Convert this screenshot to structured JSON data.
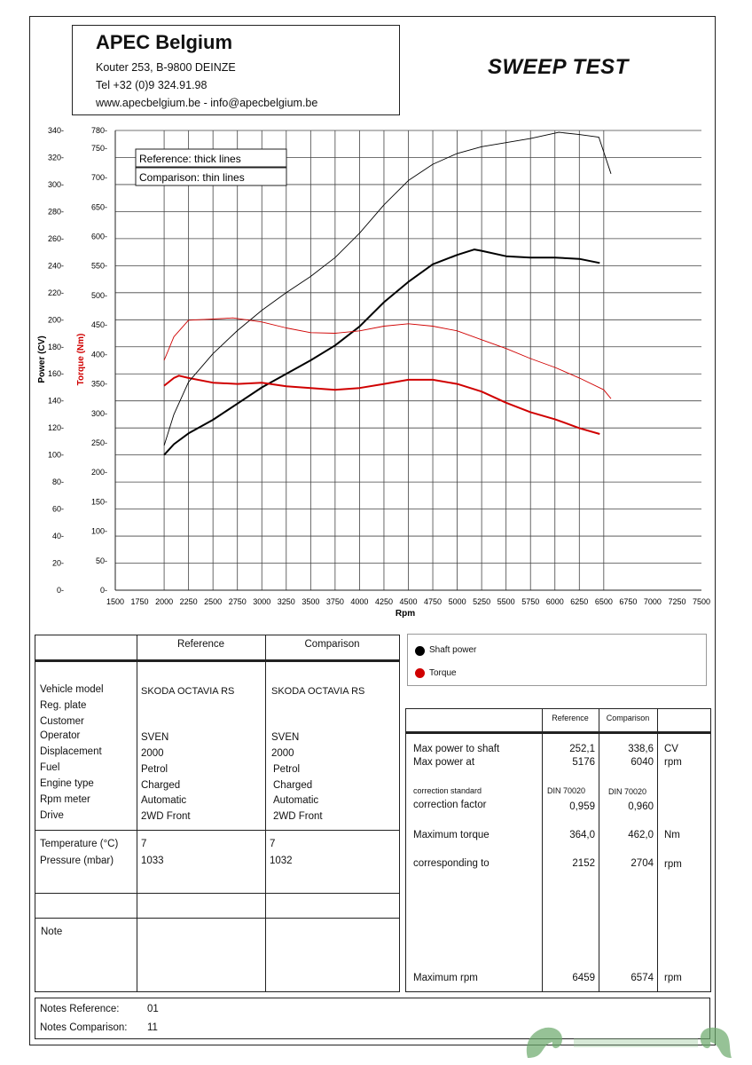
{
  "header": {
    "company": "APEC Belgium",
    "address": "Kouter 253, B-9800 DEINZE",
    "phone": "Tel +32 (0)9 324.91.98",
    "web": "www.apecbelgium.be  -  info@apecbelgium.be",
    "title": "SWEEP TEST"
  },
  "chart_legend": {
    "reference": "Reference: thick lines",
    "comparison": "Comparison: thin lines"
  },
  "chart_data": {
    "type": "line",
    "xlabel": "Rpm",
    "ylabel_left": "Power (CV)",
    "ylabel_right": "Torque (Nm)",
    "xlim": [
      1500,
      7500
    ],
    "x_ticks": [
      1500,
      1750,
      2000,
      2250,
      2500,
      2750,
      3000,
      3250,
      3500,
      3750,
      4000,
      4250,
      4500,
      4750,
      5000,
      5250,
      5500,
      5750,
      6000,
      6250,
      6500,
      6750,
      7000,
      7250,
      7500
    ],
    "power_ylim": [
      0,
      340
    ],
    "power_ticks": [
      0,
      20,
      40,
      60,
      80,
      100,
      120,
      140,
      160,
      180,
      200,
      220,
      240,
      260,
      280,
      300,
      320,
      340
    ],
    "torque_ylim": [
      0,
      780
    ],
    "torque_ticks": [
      0,
      50,
      100,
      150,
      200,
      250,
      300,
      350,
      400,
      450,
      500,
      550,
      600,
      650,
      700,
      750,
      780
    ],
    "series": [
      {
        "name": "Shaft power",
        "line": "reference",
        "axis": "power",
        "color": "#000000",
        "x": [
          2000,
          2100,
          2250,
          2500,
          2750,
          3000,
          3250,
          3500,
          3750,
          4000,
          4250,
          4500,
          4750,
          5000,
          5176,
          5250,
          5500,
          5750,
          6000,
          6250,
          6459
        ],
        "y": [
          100,
          108,
          116,
          126,
          138,
          150,
          160,
          170,
          181,
          195,
          213,
          228,
          241,
          248,
          252,
          251,
          247,
          246,
          246,
          245,
          242
        ]
      },
      {
        "name": "Torque",
        "line": "reference",
        "axis": "torque",
        "color": "#d00000",
        "x": [
          2000,
          2100,
          2152,
          2250,
          2500,
          2750,
          3000,
          3250,
          3500,
          3750,
          4000,
          4250,
          4500,
          4750,
          5000,
          5250,
          5500,
          5750,
          6000,
          6250,
          6459
        ],
        "y": [
          347,
          360,
          364,
          360,
          352,
          350,
          352,
          346,
          343,
          340,
          343,
          350,
          357,
          357,
          350,
          337,
          318,
          302,
          290,
          275,
          265
        ]
      },
      {
        "name": "Shaft power",
        "line": "comparison",
        "axis": "power",
        "color": "#000000",
        "x": [
          2000,
          2100,
          2250,
          2500,
          2750,
          3000,
          3250,
          3500,
          3750,
          4000,
          4250,
          4500,
          4750,
          5000,
          5250,
          5500,
          5750,
          6040,
          6250,
          6450,
          6574
        ],
        "y": [
          107,
          130,
          154,
          175,
          192,
          207,
          220,
          232,
          246,
          264,
          285,
          303,
          315,
          323,
          328,
          331,
          334,
          338.6,
          337,
          335,
          308
        ]
      },
      {
        "name": "Torque",
        "line": "comparison",
        "axis": "torque",
        "color": "#d00000",
        "x": [
          2000,
          2100,
          2250,
          2500,
          2704,
          3000,
          3250,
          3500,
          3750,
          4000,
          4250,
          4500,
          4750,
          5000,
          5250,
          5500,
          5750,
          6000,
          6250,
          6500,
          6574
        ],
        "y": [
          390,
          430,
          458,
          460,
          462,
          455,
          445,
          437,
          436,
          440,
          448,
          452,
          448,
          440,
          425,
          410,
          393,
          378,
          360,
          340,
          325
        ]
      }
    ]
  },
  "vehicle_table": {
    "col_reference": "Reference",
    "col_comparison": "Comparison",
    "rows": [
      {
        "label": "Vehicle model",
        "ref": "SKODA OCTAVIA RS",
        "comp": "SKODA OCTAVIA RS"
      },
      {
        "label": "Reg. plate",
        "ref": "",
        "comp": ""
      },
      {
        "label": "Customer",
        "ref": "",
        "comp": ""
      },
      {
        "label": "Operator",
        "ref": "SVEN",
        "comp": "SVEN"
      },
      {
        "label": "Displacement",
        "ref": "2000",
        "comp": "2000"
      },
      {
        "label": "Fuel",
        "ref": "Petrol",
        "comp": "Petrol"
      },
      {
        "label": "Engine type",
        "ref": "Charged",
        "comp": "Charged"
      },
      {
        "label": "Rpm meter",
        "ref": "Automatic",
        "comp": "Automatic"
      },
      {
        "label": "Drive",
        "ref": "2WD Front",
        "comp": "2WD Front"
      }
    ],
    "env_rows": [
      {
        "label": "Temperature (°C)",
        "ref": "7",
        "comp": "7"
      },
      {
        "label": "Pressure (mbar)",
        "ref": "1033",
        "comp": "1032"
      }
    ],
    "note_label": "Note"
  },
  "series_legend": {
    "shaft_power": "Shaft power",
    "torque": "Torque"
  },
  "results_table": {
    "col_reference": "Reference",
    "col_comparison": "Comparison",
    "max_power_label": "Max power to shaft",
    "max_power_ref": "252,1",
    "max_power_comp": "338,6",
    "max_power_unit": "CV",
    "max_power_at_label": "Max power at",
    "max_power_at_ref": "5176",
    "max_power_at_comp": "6040",
    "rpm_unit": "rpm",
    "corr_std_label": "correction standard",
    "corr_std_ref": "DIN 70020",
    "corr_std_comp": "DIN 70020",
    "corr_factor_label": "correction factor",
    "corr_factor_ref": "0,959",
    "corr_factor_comp": "0,960",
    "max_torque_label": "Maximum torque",
    "max_torque_ref": "364,0",
    "max_torque_comp": "462,0",
    "torque_unit": "Nm",
    "corresponding_label": "corresponding to",
    "corresponding_ref": "2152",
    "corresponding_comp": "2704",
    "max_rpm_label": "Maximum rpm",
    "max_rpm_ref": "6459",
    "max_rpm_comp": "6574"
  },
  "notes": {
    "ref_label": "Notes Reference:",
    "ref_value": "01",
    "comp_label": "Notes Comparison:",
    "comp_value": "11"
  }
}
